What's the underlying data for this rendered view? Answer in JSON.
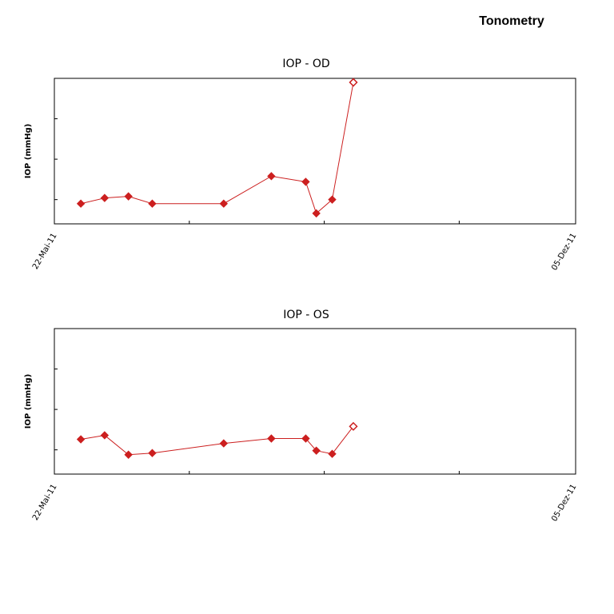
{
  "page": {
    "title": "Tonometry"
  },
  "colors": {
    "series": "#cc1f1f",
    "frame": "#000000",
    "background": "#ffffff"
  },
  "chart_data": [
    {
      "type": "line",
      "title": "IOP - OD",
      "xlabel": "",
      "ylabel": "IOP (mmHg)",
      "x_tick_labels": [
        "22-Mai-11",
        "05-Dez-11"
      ],
      "xlim": [
        "2011-05-22",
        "2011-12-05"
      ],
      "ylim": [
        12,
        30
      ],
      "grid": false,
      "series": [
        {
          "x": [
            "2011-06-01",
            "2011-06-10",
            "2011-06-19",
            "2011-06-28",
            "2011-07-25",
            "2011-08-12",
            "2011-08-25",
            "2011-08-29",
            "2011-09-04",
            "2011-09-12"
          ],
          "y": [
            14.5,
            15.2,
            15.4,
            14.5,
            14.5,
            17.9,
            17.2,
            13.3,
            15.0,
            29.5
          ],
          "last_point_hollow": true
        }
      ]
    },
    {
      "type": "line",
      "title": "IOP - OS",
      "xlabel": "",
      "ylabel": "IOP (mmHg)",
      "x_tick_labels": [
        "22-Mai-11",
        "05-Dez-11"
      ],
      "xlim": [
        "2011-05-22",
        "2011-12-05"
      ],
      "ylim": [
        12,
        30
      ],
      "grid": false,
      "series": [
        {
          "x": [
            "2011-06-01",
            "2011-06-10",
            "2011-06-19",
            "2011-06-28",
            "2011-07-25",
            "2011-08-12",
            "2011-08-25",
            "2011-08-29",
            "2011-09-04",
            "2011-09-12"
          ],
          "y": [
            16.3,
            16.8,
            14.4,
            14.6,
            15.8,
            16.4,
            16.4,
            14.9,
            14.5,
            17.9
          ]
        }
      ]
    }
  ]
}
